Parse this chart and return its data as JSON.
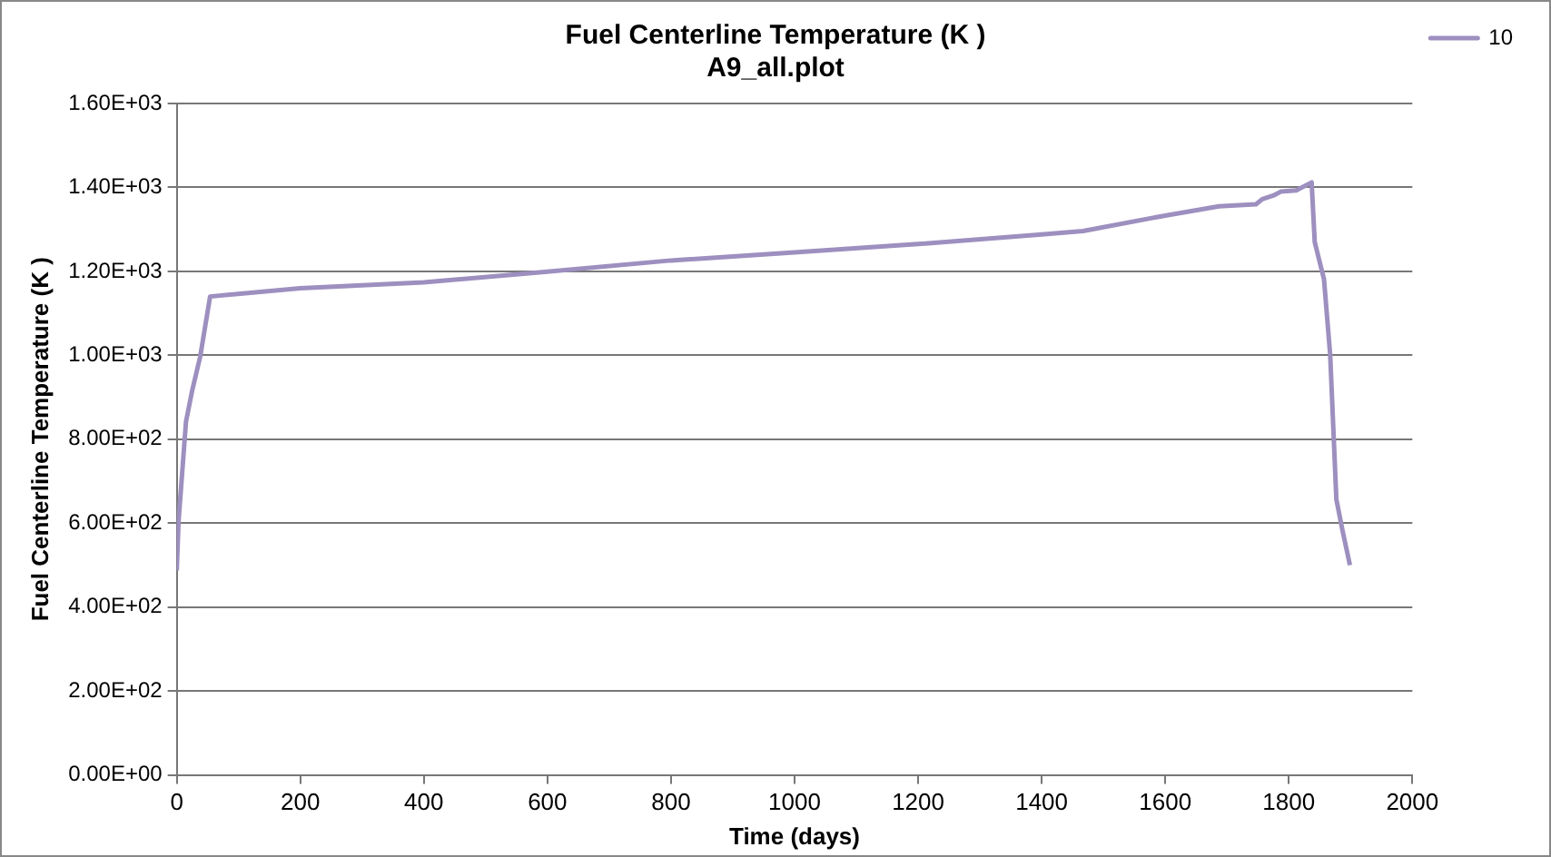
{
  "chart_data": {
    "type": "line",
    "title": "Fuel Centerline Temperature (K )",
    "subtitle": "A9_all.plot",
    "xlabel": "Time (days)",
    "ylabel": "Fuel Centerline Temperature (K )",
    "xlim": [
      0,
      2000
    ],
    "xticks": [
      0,
      200,
      400,
      600,
      800,
      1000,
      1200,
      1400,
      1600,
      1800,
      2000
    ],
    "ylim": [
      0,
      1600
    ],
    "yticks": [
      {
        "value": 0,
        "label": "0.00E+00"
      },
      {
        "value": 200,
        "label": "2.00E+02"
      },
      {
        "value": 400,
        "label": "4.00E+02"
      },
      {
        "value": 600,
        "label": "6.00E+02"
      },
      {
        "value": 800,
        "label": "8.00E+02"
      },
      {
        "value": 1000,
        "label": "1.00E+03"
      },
      {
        "value": 1200,
        "label": "1.20E+03"
      },
      {
        "value": 1400,
        "label": "1.40E+03"
      },
      {
        "value": 1600,
        "label": "1.60E+03"
      }
    ],
    "grid": "y",
    "legend": "top right",
    "marker": "none",
    "line_style": "solid",
    "series": [
      {
        "name": "10",
        "color": "#9d8fbf",
        "x": [
          0,
          3,
          15,
          25,
          38,
          54,
          200,
          400,
          600,
          800,
          1000,
          1200,
          1400,
          1467,
          1600,
          1687,
          1747,
          1757,
          1777,
          1787,
          1812,
          1837,
          1842,
          1857,
          1867,
          1877,
          1887,
          1899
        ],
        "values": [
          487,
          606,
          842,
          916,
          997,
          1140,
          1160,
          1174,
          1199,
          1226,
          1245,
          1265,
          1288,
          1296,
          1333,
          1355,
          1360,
          1372,
          1382,
          1390,
          1393,
          1412,
          1270,
          1181,
          1002,
          657,
          582,
          500
        ]
      }
    ]
  }
}
